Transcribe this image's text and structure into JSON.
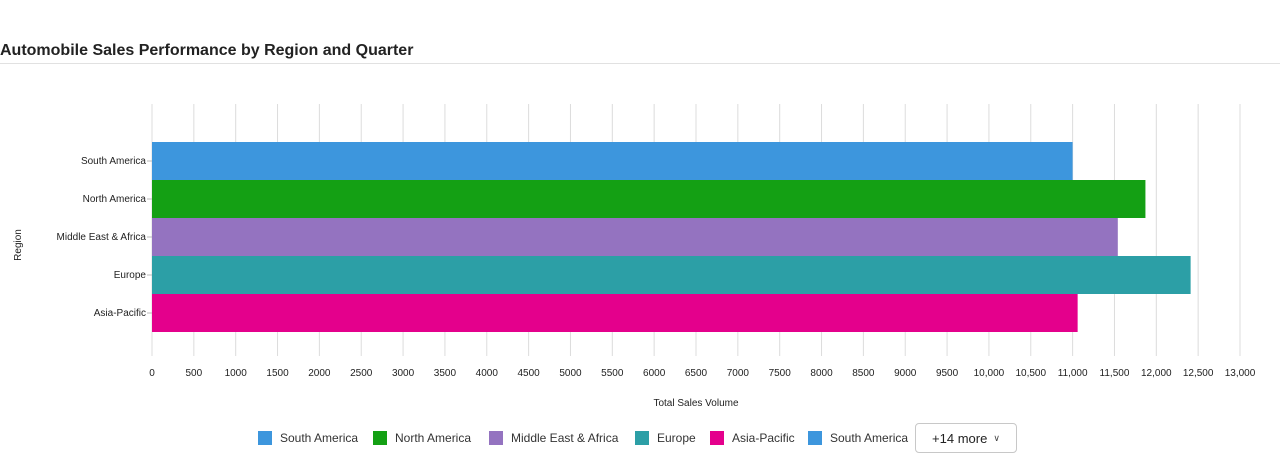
{
  "page": {
    "title": "Automobile Sales Performance by Region and Quarter"
  },
  "chart_data": {
    "type": "bar",
    "orientation": "horizontal",
    "title": "Automobile Sales Performance by Region and Quarter",
    "xlabel": "Total Sales Volume",
    "ylabel": "Region",
    "xlim": [
      0,
      13000
    ],
    "x_ticks": [
      {
        "value": 0,
        "label": "0"
      },
      {
        "value": 500,
        "label": "500"
      },
      {
        "value": 1000,
        "label": "1000"
      },
      {
        "value": 1500,
        "label": "1500"
      },
      {
        "value": 2000,
        "label": "2000"
      },
      {
        "value": 2500,
        "label": "2500"
      },
      {
        "value": 3000,
        "label": "3000"
      },
      {
        "value": 3500,
        "label": "3500"
      },
      {
        "value": 4000,
        "label": "4000"
      },
      {
        "value": 4500,
        "label": "4500"
      },
      {
        "value": 5000,
        "label": "5000"
      },
      {
        "value": 5500,
        "label": "5500"
      },
      {
        "value": 6000,
        "label": "6000"
      },
      {
        "value": 6500,
        "label": "6500"
      },
      {
        "value": 7000,
        "label": "7000"
      },
      {
        "value": 7500,
        "label": "7500"
      },
      {
        "value": 8000,
        "label": "8000"
      },
      {
        "value": 8500,
        "label": "8500"
      },
      {
        "value": 9000,
        "label": "9000"
      },
      {
        "value": 9500,
        "label": "9500"
      },
      {
        "value": 10000,
        "label": "10,000"
      },
      {
        "value": 10500,
        "label": "10,500"
      },
      {
        "value": 11000,
        "label": "11,000"
      },
      {
        "value": 11500,
        "label": "11,500"
      },
      {
        "value": 12000,
        "label": "12,000"
      },
      {
        "value": 12500,
        "label": "12,500"
      },
      {
        "value": 13000,
        "label": "13,000"
      }
    ],
    "grid": true,
    "legend_position": "bottom",
    "categories": [
      "South America",
      "North America",
      "Middle East & Africa",
      "Europe",
      "Asia-Pacific"
    ],
    "series": [
      {
        "name": "South America",
        "color": "#3d96dd",
        "category": "South America",
        "value": 11000
      },
      {
        "name": "North America",
        "color": "#14a014",
        "category": "North America",
        "value": 11870
      },
      {
        "name": "Middle East & Africa",
        "color": "#9473c0",
        "category": "Middle East & Africa",
        "value": 11540
      },
      {
        "name": "Europe",
        "color": "#2c9fa6",
        "category": "Europe",
        "value": 12410
      },
      {
        "name": "Asia-Pacific",
        "color": "#e4008c",
        "category": "Asia-Pacific",
        "value": 11060
      }
    ]
  },
  "legend": {
    "items": [
      {
        "label": "South America",
        "color": "#3d96dd"
      },
      {
        "label": "North America",
        "color": "#14a014"
      },
      {
        "label": "Middle East & Africa",
        "color": "#9473c0"
      },
      {
        "label": "Europe",
        "color": "#2c9fa6"
      },
      {
        "label": "Asia-Pacific",
        "color": "#e4008c"
      },
      {
        "label": "South America",
        "color": "#3d96dd"
      }
    ],
    "more_label": "+14 more"
  }
}
